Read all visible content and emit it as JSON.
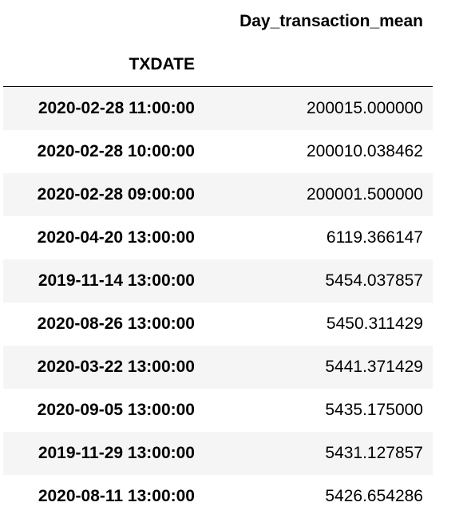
{
  "table": {
    "column_header": "Day_transaction_mean",
    "index_name": "TXDATE",
    "rows": [
      {
        "index": "2020-02-28 11:00:00",
        "value": "200015.000000"
      },
      {
        "index": "2020-02-28 10:00:00",
        "value": "200010.038462"
      },
      {
        "index": "2020-02-28 09:00:00",
        "value": "200001.500000"
      },
      {
        "index": "2020-04-20 13:00:00",
        "value": "6119.366147"
      },
      {
        "index": "2019-11-14 13:00:00",
        "value": "5454.037857"
      },
      {
        "index": "2020-08-26 13:00:00",
        "value": "5450.311429"
      },
      {
        "index": "2020-03-22 13:00:00",
        "value": "5441.371429"
      },
      {
        "index": "2020-09-05 13:00:00",
        "value": "5435.175000"
      },
      {
        "index": "2019-11-29 13:00:00",
        "value": "5431.127857"
      },
      {
        "index": "2020-08-11 13:00:00",
        "value": "5426.654286"
      }
    ]
  },
  "colors": {
    "stripe": "#f5f5f5",
    "border": "#000000"
  }
}
